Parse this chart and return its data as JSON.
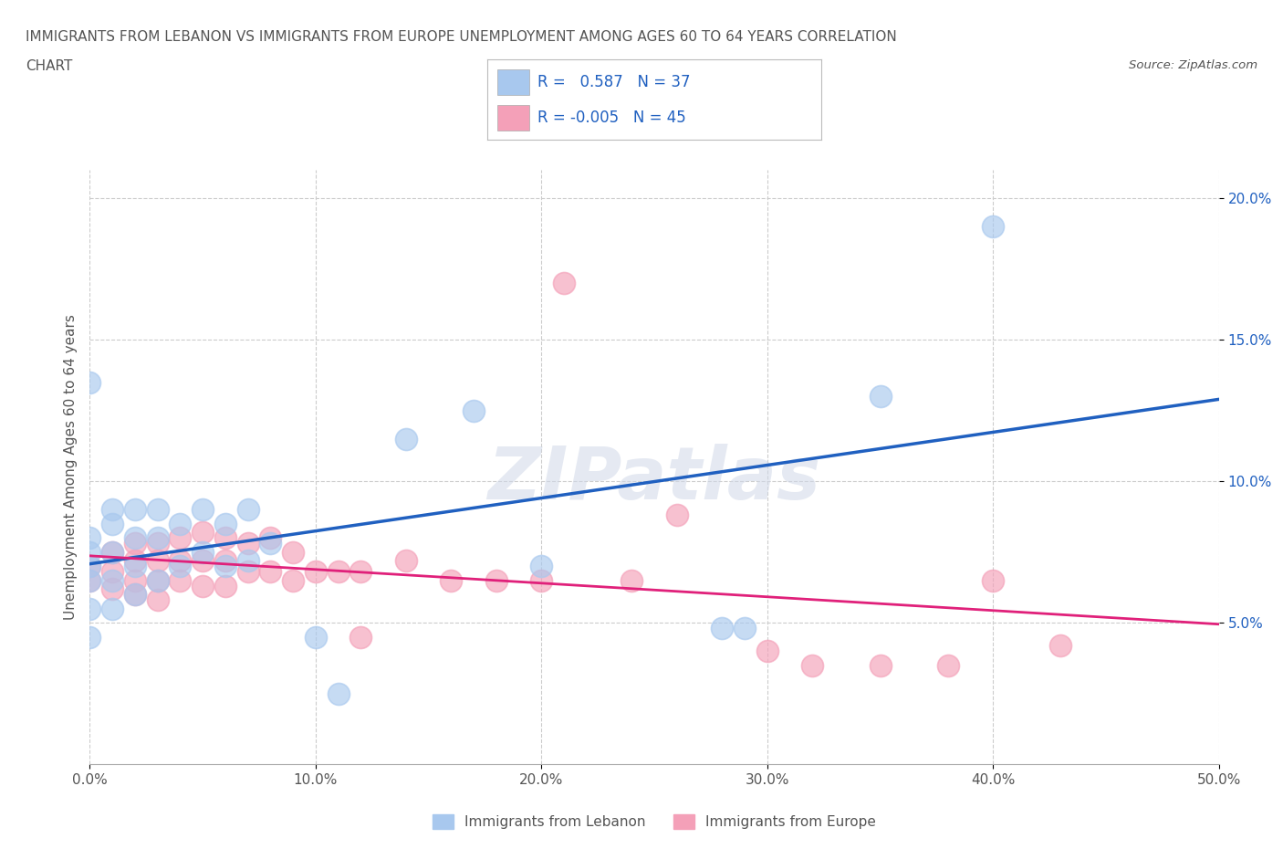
{
  "title_line1": "IMMIGRANTS FROM LEBANON VS IMMIGRANTS FROM EUROPE UNEMPLOYMENT AMONG AGES 60 TO 64 YEARS CORRELATION",
  "title_line2": "CHART",
  "source_text": "Source: ZipAtlas.com",
  "ylabel": "Unemployment Among Ages 60 to 64 years",
  "xlim": [
    0.0,
    0.5
  ],
  "ylim": [
    0.0,
    0.21
  ],
  "xtick_labels": [
    "0.0%",
    "10.0%",
    "20.0%",
    "30.0%",
    "40.0%",
    "50.0%"
  ],
  "xtick_vals": [
    0.0,
    0.1,
    0.2,
    0.3,
    0.4,
    0.5
  ],
  "ytick_labels": [
    "5.0%",
    "10.0%",
    "15.0%",
    "20.0%"
  ],
  "ytick_vals": [
    0.05,
    0.1,
    0.15,
    0.2
  ],
  "color_lebanon": "#A8C8EE",
  "color_europe": "#F4A0B8",
  "color_line_lebanon": "#2060C0",
  "color_line_europe": "#E0207A",
  "watermark": "ZIPatlas",
  "background_color": "#FFFFFF",
  "grid_color": "#CCCCCC",
  "title_color": "#555555",
  "lebanon_x": [
    0.0,
    0.0,
    0.0,
    0.0,
    0.0,
    0.0,
    0.0,
    0.01,
    0.01,
    0.01,
    0.01,
    0.01,
    0.02,
    0.02,
    0.02,
    0.02,
    0.03,
    0.03,
    0.03,
    0.04,
    0.04,
    0.05,
    0.05,
    0.06,
    0.06,
    0.07,
    0.07,
    0.08,
    0.1,
    0.11,
    0.14,
    0.17,
    0.2,
    0.28,
    0.29,
    0.35,
    0.4
  ],
  "lebanon_y": [
    0.135,
    0.08,
    0.075,
    0.07,
    0.065,
    0.055,
    0.045,
    0.09,
    0.085,
    0.075,
    0.065,
    0.055,
    0.09,
    0.08,
    0.07,
    0.06,
    0.09,
    0.08,
    0.065,
    0.085,
    0.07,
    0.09,
    0.075,
    0.085,
    0.07,
    0.09,
    0.072,
    0.078,
    0.045,
    0.025,
    0.115,
    0.125,
    0.07,
    0.048,
    0.048,
    0.13,
    0.19
  ],
  "europe_x": [
    0.0,
    0.0,
    0.01,
    0.01,
    0.01,
    0.02,
    0.02,
    0.02,
    0.02,
    0.03,
    0.03,
    0.03,
    0.03,
    0.04,
    0.04,
    0.04,
    0.05,
    0.05,
    0.05,
    0.06,
    0.06,
    0.06,
    0.07,
    0.07,
    0.08,
    0.08,
    0.09,
    0.09,
    0.1,
    0.11,
    0.12,
    0.12,
    0.14,
    0.16,
    0.18,
    0.2,
    0.21,
    0.24,
    0.26,
    0.3,
    0.32,
    0.35,
    0.38,
    0.4,
    0.43
  ],
  "europe_y": [
    0.07,
    0.065,
    0.075,
    0.068,
    0.062,
    0.078,
    0.072,
    0.065,
    0.06,
    0.078,
    0.072,
    0.065,
    0.058,
    0.08,
    0.072,
    0.065,
    0.082,
    0.072,
    0.063,
    0.08,
    0.072,
    0.063,
    0.078,
    0.068,
    0.08,
    0.068,
    0.075,
    0.065,
    0.068,
    0.068,
    0.068,
    0.045,
    0.072,
    0.065,
    0.065,
    0.065,
    0.17,
    0.065,
    0.088,
    0.04,
    0.035,
    0.035,
    0.035,
    0.065,
    0.042
  ]
}
